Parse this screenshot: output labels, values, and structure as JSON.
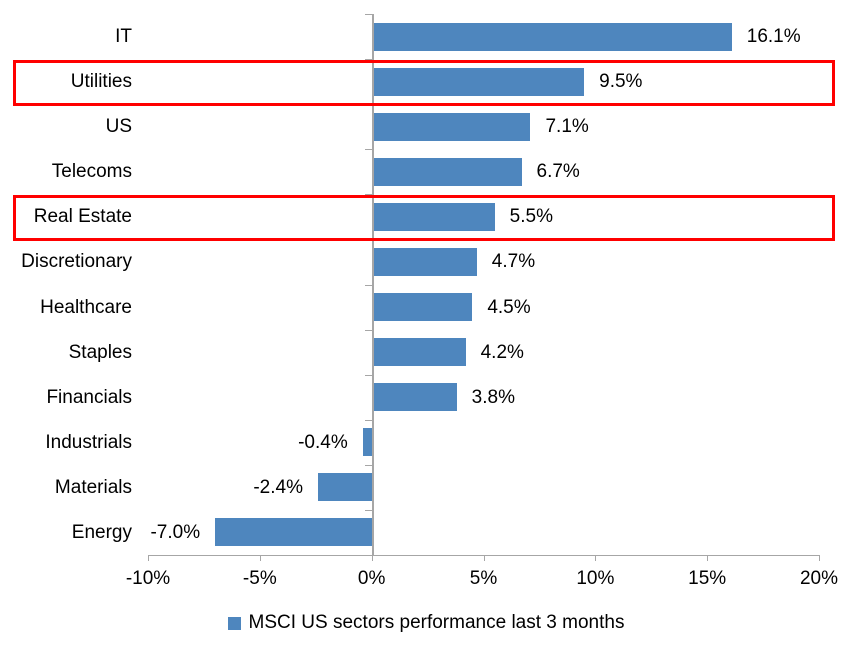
{
  "chart_data": {
    "type": "bar",
    "orientation": "horizontal",
    "categories": [
      "IT",
      "Utilities",
      "US",
      "Telecoms",
      "Real Estate",
      "Discretionary",
      "Healthcare",
      "Staples",
      "Financials",
      "Industrials",
      "Materials",
      "Energy"
    ],
    "values": [
      16.1,
      9.5,
      7.1,
      6.7,
      5.5,
      4.7,
      4.5,
      4.2,
      3.8,
      -0.4,
      -2.4,
      -7.0
    ],
    "value_labels": [
      "16.1%",
      "9.5%",
      "7.1%",
      "6.7%",
      "5.5%",
      "4.7%",
      "4.5%",
      "4.2%",
      "3.8%",
      "-0.4%",
      "-2.4%",
      "-7.0%"
    ],
    "x_tick_labels": [
      "-10%",
      "-5%",
      "0%",
      "5%",
      "10%",
      "15%",
      "20%"
    ],
    "x_tick_values": [
      -10,
      -5,
      0,
      5,
      10,
      15,
      20
    ],
    "xlim": [
      -10,
      20
    ],
    "grid": false,
    "legend": "MSCI US sectors performance last 3 months",
    "legend_position": "bottom",
    "bar_color": "#4E86BE",
    "axis_color": "#A6A6A6",
    "text_color": "#000000",
    "highlight_box_color": "#FF0000",
    "highlighted_categories": [
      "Utilities",
      "Real Estate"
    ]
  }
}
